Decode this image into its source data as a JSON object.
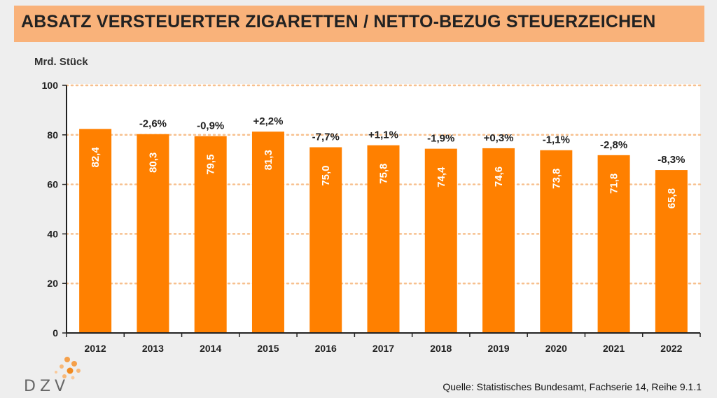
{
  "title": "ABSATZ VERSTEUERTER ZIGARETTEN / NETTO-BEZUG STEUERZEICHEN",
  "source": "Quelle: Statistisches Bundesamt, Fachserie 14, Reihe 9.1.1",
  "logo_text": "DZV",
  "colors": {
    "bar": "#ff8000",
    "title_bg": "#f9b27a",
    "grid": "#f7c08e",
    "label_on_bar": "#ffffff"
  },
  "chart_data": {
    "type": "bar",
    "ylabel": "Mrd. Stück",
    "ylim": [
      0,
      100
    ],
    "yticks": [
      "0",
      "20",
      "40",
      "60",
      "80",
      "100"
    ],
    "grid": true,
    "categories": [
      "2012",
      "2013",
      "2014",
      "2015",
      "2016",
      "2017",
      "2018",
      "2019",
      "2020",
      "2021",
      "2022"
    ],
    "values": [
      82.4,
      80.3,
      79.5,
      81.3,
      75.0,
      75.8,
      74.4,
      74.6,
      73.8,
      71.8,
      65.8
    ],
    "value_labels": [
      "82,4",
      "80,3",
      "79,5",
      "81,3",
      "75,0",
      "75,8",
      "74,4",
      "74,6",
      "73,8",
      "71,8",
      "65,8"
    ],
    "change_labels": [
      "",
      "-2,6%",
      "-0,9%",
      "+2,2%",
      "-7,7%",
      "+1,1%",
      "-1,9%",
      "+0,3%",
      "-1,1%",
      "-2,8%",
      "-8,3%"
    ]
  }
}
